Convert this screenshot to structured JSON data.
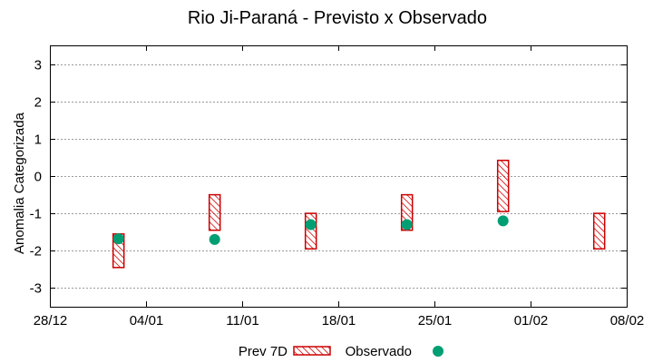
{
  "chart_data": {
    "type": "range-bar-scatter",
    "title": "Rio Ji-Paraná - Previsto x Observado",
    "ylabel": "Anomalia Categorizada",
    "xlabel": "",
    "ylim": [
      -3.5,
      3.5
    ],
    "yticks": [
      3,
      2,
      1,
      0,
      -1,
      -2,
      -3
    ],
    "xlim": [
      0,
      42
    ],
    "xticks": [
      {
        "day": 0,
        "label": "28/12"
      },
      {
        "day": 7,
        "label": "04/01"
      },
      {
        "day": 14,
        "label": "11/01"
      },
      {
        "day": 21,
        "label": "18/01"
      },
      {
        "day": 28,
        "label": "25/01"
      },
      {
        "day": 35,
        "label": "01/02"
      },
      {
        "day": 42,
        "label": "08/02"
      }
    ],
    "grid": true,
    "series": [
      {
        "name": "Prev 7D",
        "kind": "range-bar",
        "color": "#cc0000",
        "points": [
          {
            "day": 5,
            "low": -2.45,
            "high": -1.55
          },
          {
            "day": 12,
            "low": -1.45,
            "high": -0.5
          },
          {
            "day": 19,
            "low": -1.95,
            "high": -1.0
          },
          {
            "day": 26,
            "low": -1.45,
            "high": -0.5
          },
          {
            "day": 33,
            "low": -0.95,
            "high": 0.42
          },
          {
            "day": 40,
            "low": -1.95,
            "high": -1.0
          }
        ]
      },
      {
        "name": "Observado",
        "kind": "scatter",
        "color": "#009e73",
        "points": [
          {
            "day": 5,
            "value": -1.68
          },
          {
            "day": 12,
            "value": -1.7
          },
          {
            "day": 19,
            "value": -1.3
          },
          {
            "day": 26,
            "value": -1.3
          },
          {
            "day": 33,
            "value": -1.2
          }
        ]
      }
    ],
    "legend": {
      "position": "bottom-center",
      "entries": [
        "Prev 7D",
        "Observado"
      ]
    }
  }
}
